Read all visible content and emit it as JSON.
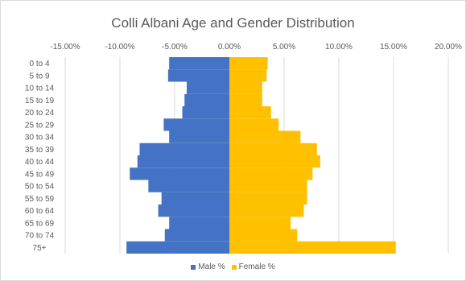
{
  "chart_data": {
    "type": "bar",
    "orientation": "horizontal",
    "title": "Colli Albani Age and Gender Distribution",
    "xlim": [
      -15,
      20
    ],
    "xticks": [
      -15,
      -10,
      -5,
      0,
      5,
      10,
      15,
      20
    ],
    "xtick_labels": [
      "-15.00%",
      "-10.00%",
      "-5.00%",
      "0.00%",
      "5.00%",
      "10.00%",
      "15.00%",
      "20.00%"
    ],
    "categories": [
      "0 to 4",
      "5 to 9",
      "10 to 14",
      "15 to 19",
      "20 to 24",
      "25 to 29",
      "30 to 34",
      "35 to 39",
      "40 to 44",
      "45 to 49",
      "50 to 54",
      "55 to 59",
      "60 to 64",
      "65 to 69",
      "70 to 74",
      "75+"
    ],
    "series": [
      {
        "name": "Male %",
        "color": "#4472C4",
        "values": [
          -5.5,
          -5.6,
          -3.9,
          -4.1,
          -4.3,
          -6.0,
          -5.5,
          -8.2,
          -8.4,
          -9.1,
          -7.4,
          -6.2,
          -6.5,
          -5.5,
          -5.9,
          -9.4
        ]
      },
      {
        "name": "Female %",
        "color": "#FFC000",
        "values": [
          3.5,
          3.4,
          3.0,
          3.0,
          3.8,
          4.5,
          6.5,
          8.0,
          8.3,
          7.6,
          7.1,
          7.1,
          6.8,
          5.6,
          6.2,
          15.2
        ]
      }
    ],
    "grid": true,
    "legend_position": "bottom"
  }
}
